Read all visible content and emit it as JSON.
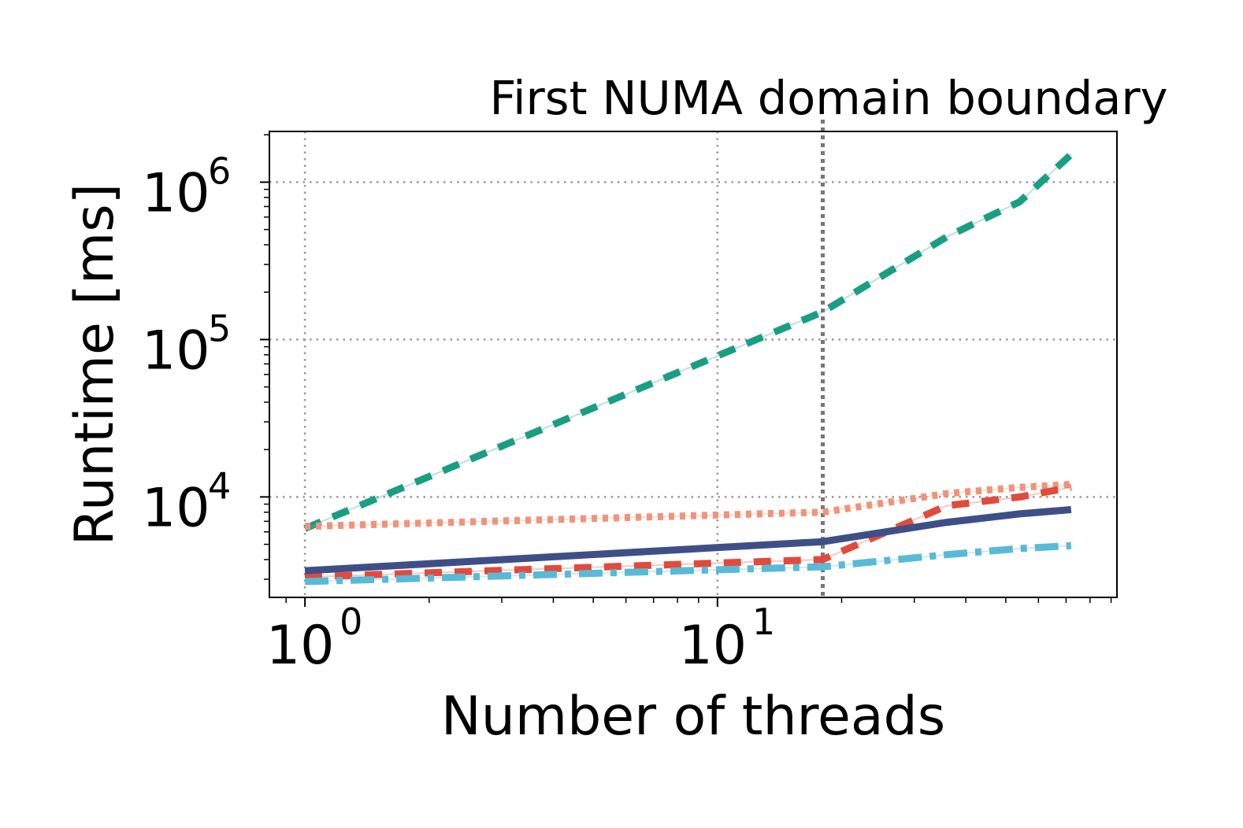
{
  "chart_data": {
    "type": "line",
    "title": "",
    "xlabel": "Number of threads",
    "ylabel": "Runtime [ms]",
    "xscale": "log",
    "yscale": "log",
    "xlim": [
      0.82,
      93
    ],
    "ylim": [
      2300,
      2100000
    ],
    "grid": true,
    "legend": "none",
    "x_ticks": [
      {
        "base": "10",
        "exp": "0",
        "value": 1
      },
      {
        "base": "10",
        "exp": "1",
        "value": 10
      }
    ],
    "y_ticks": [
      {
        "base": "10",
        "exp": "4",
        "value": 10000
      },
      {
        "base": "10",
        "exp": "5",
        "value": 100000
      },
      {
        "base": "10",
        "exp": "6",
        "value": 1000000
      }
    ],
    "vline": {
      "x": 18,
      "label": "First NUMA domain boundary"
    },
    "series": [
      {
        "color": "#1a9e83",
        "style": "dashed",
        "x": [
          1,
          18,
          36,
          54,
          72
        ],
        "y": [
          6300,
          150000,
          450000,
          750000,
          1500000
        ]
      },
      {
        "color": "#f0937a",
        "style": "dotted",
        "x": [
          1,
          18,
          36,
          54,
          72
        ],
        "y": [
          6500,
          8000,
          10500,
          11500,
          12000
        ]
      },
      {
        "color": "#e24a3b",
        "style": "dashed",
        "x": [
          1,
          18,
          36,
          54,
          72
        ],
        "y": [
          3100,
          4000,
          8800,
          10000,
          11500
        ]
      },
      {
        "color": "#3e4f88",
        "style": "solid",
        "x": [
          1,
          18,
          36,
          54,
          72
        ],
        "y": [
          3400,
          5200,
          6900,
          7800,
          8300
        ]
      },
      {
        "color": "#58bad6",
        "style": "dashdot",
        "x": [
          1,
          18,
          36,
          54,
          72
        ],
        "y": [
          2900,
          3600,
          4300,
          4700,
          4900
        ]
      }
    ]
  }
}
